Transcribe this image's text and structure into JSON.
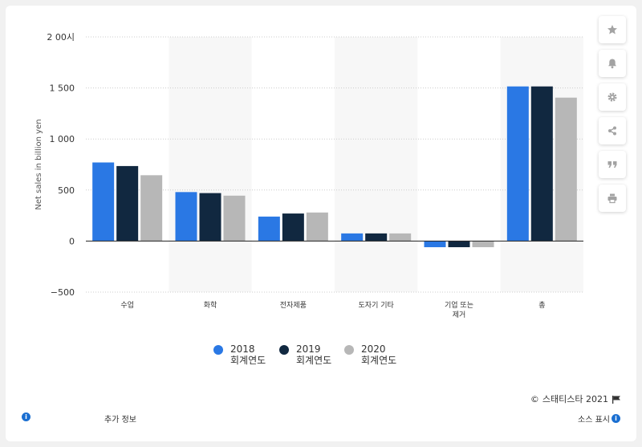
{
  "chart_data": {
    "type": "bar",
    "title": "",
    "xlabel": "",
    "ylabel": "Net sales in billion yen",
    "ylim": [
      -500,
      2000
    ],
    "yticks": [
      -500,
      0,
      500,
      1000,
      1500,
      2000
    ],
    "ytick_labels": [
      "−500",
      "0",
      "500",
      "1 000",
      "1 500",
      "2 00시"
    ],
    "categories": [
      "수업",
      "화학",
      "전자제품",
      "도자기 기타",
      "기업 또는 제거",
      "총"
    ],
    "category_labels": [
      [
        "수업"
      ],
      [
        "화학"
      ],
      [
        "전자제품"
      ],
      [
        "도자기 기타"
      ],
      [
        "기업 또는",
        "제거"
      ],
      [
        "총"
      ]
    ],
    "series": [
      {
        "name": "2018 회계연도",
        "color": "#2a78e4",
        "values": [
          770,
          480,
          240,
          75,
          -60,
          1515
        ]
      },
      {
        "name": "2019 회계연도",
        "color": "#112840",
        "values": [
          735,
          470,
          270,
          75,
          -60,
          1515
        ]
      },
      {
        "name": "2020 회계연도",
        "color": "#b7b7b7",
        "values": [
          645,
          445,
          280,
          75,
          -60,
          1405
        ]
      }
    ],
    "grid": true,
    "legend_position": "bottom-center"
  },
  "legend": {
    "items": [
      {
        "label": "2018\n회계연도",
        "color": "#2a78e4"
      },
      {
        "label": "2019\n회계연도",
        "color": "#112840"
      },
      {
        "label": "2020\n회계연도",
        "color": "#b7b7b7"
      }
    ]
  },
  "side_buttons": [
    {
      "name": "favorite-button",
      "icon": "star-icon"
    },
    {
      "name": "notification-button",
      "icon": "bell-icon"
    },
    {
      "name": "settings-button",
      "icon": "gear-icon"
    },
    {
      "name": "share-button",
      "icon": "share-icon"
    },
    {
      "name": "cite-button",
      "icon": "quote-icon"
    },
    {
      "name": "print-button",
      "icon": "print-icon"
    }
  ],
  "footer": {
    "copyright_symbol": "©",
    "credit": "스태티스타 2021",
    "more_info": "추가 정보",
    "show_source": "소스 표시"
  },
  "colors": {
    "background": "#f1f1f1",
    "band": "#f7f7f7",
    "grid": "#cccccc",
    "icon": "#a3a3a3",
    "info": "#1a6fd1"
  }
}
